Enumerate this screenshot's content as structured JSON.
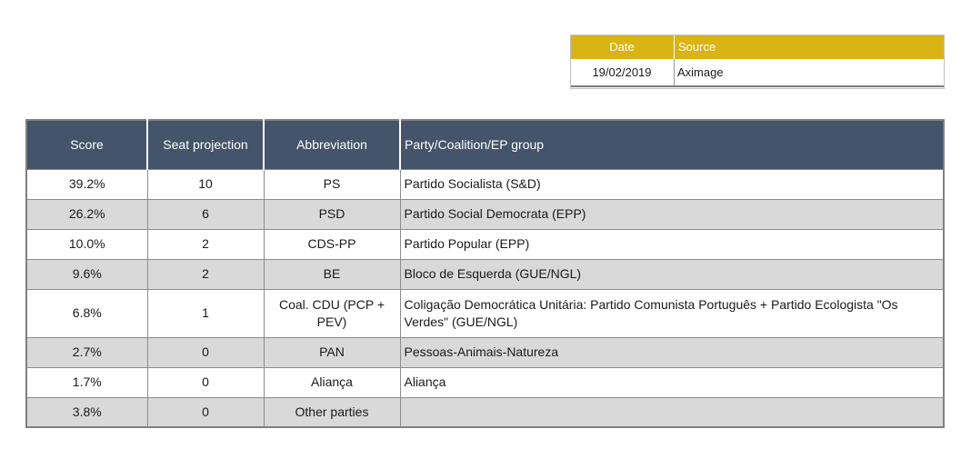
{
  "source_table": {
    "headers": {
      "date": "Date",
      "source": "Source"
    },
    "row": {
      "date": "19/02/2019",
      "source": "Aximage"
    }
  },
  "poll_table": {
    "headers": {
      "score": "Score",
      "seats": "Seat projection",
      "abbr": "Abbreviation",
      "party": "Party/Coalition/EP group"
    },
    "rows": [
      {
        "score": "39.2%",
        "seats": "10",
        "abbr": "PS",
        "party": "Partido Socialista (S&D)"
      },
      {
        "score": "26.2%",
        "seats": "6",
        "abbr": "PSD",
        "party": "Partido Social Democrata (EPP)"
      },
      {
        "score": "10.0%",
        "seats": "2",
        "abbr": "CDS-PP",
        "party": "Partido Popular (EPP)"
      },
      {
        "score": "9.6%",
        "seats": "2",
        "abbr": "BE",
        "party": "Bloco de Esquerda (GUE/NGL)"
      },
      {
        "score": "6.8%",
        "seats": "1",
        "abbr": "Coal. CDU (PCP + PEV)",
        "party": "Coligação Democrática Unitária: Partido Comunista Português + Partido Ecologista \"Os Verdes\" (GUE/NGL)"
      },
      {
        "score": "2.7%",
        "seats": "0",
        "abbr": "PAN",
        "party": "Pessoas-Animais-Natureza"
      },
      {
        "score": "1.7%",
        "seats": "0",
        "abbr": "Aliança",
        "party": "Aliança"
      },
      {
        "score": "3.8%",
        "seats": "0",
        "abbr": "Other parties",
        "party": ""
      }
    ]
  }
}
